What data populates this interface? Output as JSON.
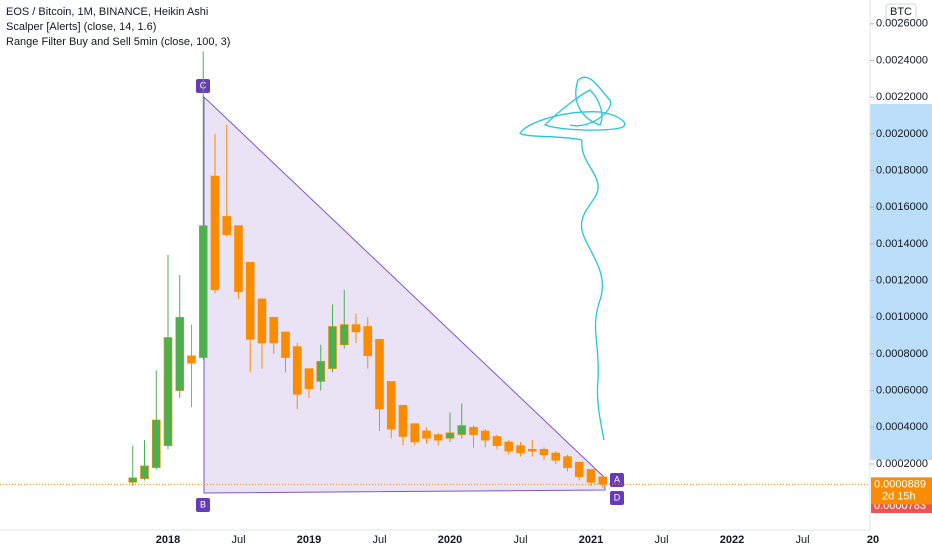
{
  "chart_data": {
    "type": "candlestick",
    "title": "EOS / Bitcoin, 1M, BINANCE, Heikin Ashi",
    "indicators": [
      "Scalper [Alerts] (close, 14, 1.6)",
      "Range Filter Buy and Sell 5min (close, 100, 3)"
    ],
    "currency": "BTC",
    "categories": [
      null,
      null,
      null,
      "2018",
      null,
      null,
      null,
      null,
      null,
      "Jul",
      null,
      null,
      null,
      null,
      null,
      "2019",
      null,
      null,
      null,
      null,
      null,
      "Jul",
      null,
      null,
      null,
      null,
      null,
      "2020",
      null,
      null,
      null,
      null,
      null,
      "Jul",
      null,
      null,
      null,
      null,
      null,
      "2021",
      null,
      null,
      null,
      null,
      null,
      "Jul",
      null,
      null,
      null,
      null,
      null,
      "2022",
      null,
      null,
      null,
      null,
      null,
      "Jul",
      null,
      null,
      null,
      null,
      null,
      "20"
    ],
    "open": [
      0.0001,
      0.00012,
      0.00018,
      0.0003,
      0.0006,
      0.00079,
      0.00078,
      0.00177,
      0.00155,
      0.0015,
      0.0013,
      0.0011,
      0.001,
      0.00092,
      0.00084,
      0.00072,
      0.00065,
      0.00072,
      0.00085,
      0.00096,
      0.00095,
      0.00088,
      0.00065,
      0.00052,
      0.00042,
      0.00038,
      0.00036,
      0.00034,
      0.00036,
      0.0004,
      0.00038,
      0.00035,
      0.00032,
      0.0003,
      0.00028,
      0.00028,
      0.00026,
      0.00024,
      0.00021,
      0.00017,
      0.00013,
      null,
      null,
      null,
      null,
      null,
      null,
      null,
      null,
      null,
      null,
      null,
      null,
      null,
      null,
      null,
      null,
      null,
      null,
      null,
      null,
      null,
      null,
      null
    ],
    "high": [
      0.0003,
      0.00033,
      0.00071,
      0.00134,
      0.00123,
      0.00096,
      0.00245,
      0.002,
      0.00205,
      0.0015,
      0.0013,
      0.0011,
      0.001,
      0.00092,
      0.00086,
      0.00072,
      0.00085,
      0.00107,
      0.00115,
      0.00102,
      0.001,
      0.00088,
      0.00065,
      0.00052,
      0.00042,
      0.0004,
      0.00037,
      0.00048,
      0.00053,
      0.00041,
      0.00039,
      0.00036,
      0.00033,
      0.00032,
      0.00033,
      0.00029,
      0.00027,
      0.00025,
      0.00021,
      0.00017,
      0.00013,
      null,
      null,
      null,
      null,
      null,
      null,
      null,
      null,
      null,
      null,
      null,
      null,
      null,
      null,
      null,
      null,
      null,
      null,
      null,
      null,
      null,
      null,
      null
    ],
    "low": [
      8e-05,
      0.00011,
      0.00017,
      0.00028,
      0.00056,
      0.00051,
      0.00077,
      0.00113,
      0.00144,
      0.0011,
      0.0007,
      0.00072,
      0.0008,
      0.0007,
      0.0005,
      0.00056,
      0.0006,
      0.0007,
      0.00083,
      0.00086,
      0.00072,
      0.00038,
      0.00034,
      0.0003,
      0.0003,
      0.00031,
      0.0003,
      0.00032,
      0.00034,
      0.00029,
      0.00029,
      0.00028,
      0.00025,
      0.00024,
      0.00024,
      0.00022,
      0.0002,
      0.00016,
      0.00011,
      8e-05,
      7e-05,
      null,
      null,
      null,
      null,
      null,
      null,
      null,
      null,
      null,
      null,
      null,
      null,
      null,
      null,
      null,
      null,
      null,
      null,
      null,
      null,
      null,
      null,
      null
    ],
    "close": [
      0.000125,
      0.00019,
      0.00044,
      0.00089,
      0.001,
      0.00075,
      0.0015,
      0.00115,
      0.00145,
      0.00114,
      0.00088,
      0.00086,
      0.00086,
      0.00078,
      0.00058,
      0.00061,
      0.00076,
      0.00095,
      0.00096,
      0.00092,
      0.00079,
      0.0005,
      0.00039,
      0.00035,
      0.00032,
      0.00034,
      0.00033,
      0.00037,
      0.00041,
      0.00036,
      0.00033,
      0.0003,
      0.00027,
      0.00026,
      0.00027,
      0.00025,
      0.00022,
      0.00018,
      0.00013,
      0.0001,
      9e-05,
      null,
      null,
      null,
      null,
      null,
      null,
      null,
      null,
      null,
      null,
      null,
      null,
      null,
      null,
      null,
      null,
      null,
      null,
      null,
      null,
      null,
      null,
      null
    ],
    "up_color": "#4caf50",
    "down_color": "#fb8c00",
    "ylim": [
      -0.00016,
      0.00273
    ],
    "yticks": [
      {
        "value": 0.0002,
        "label": "0.0002000"
      },
      {
        "value": 0.0004,
        "label": "0.0004000"
      },
      {
        "value": 0.0006,
        "label": "0.0006000"
      },
      {
        "value": 0.0008,
        "label": "0.0008000"
      },
      {
        "value": 0.001,
        "label": "0.0010000"
      },
      {
        "value": 0.0012,
        "label": "0.0012000"
      },
      {
        "value": 0.0014,
        "label": "0.0014000"
      },
      {
        "value": 0.0016,
        "label": "0.0016000"
      },
      {
        "value": 0.0018,
        "label": "0.0018000"
      },
      {
        "value": 0.002,
        "label": "0.0020000"
      },
      {
        "value": 0.0022,
        "label": "0.0022000"
      },
      {
        "value": 0.0024,
        "label": "0.0024000"
      },
      {
        "value": 0.0026,
        "label": "0.0026000"
      }
    ],
    "last_price": {
      "value": 8.89e-05,
      "label": "0.0000889"
    },
    "countdown": "2d 15h",
    "range_low_label": "0.0000783",
    "point_labels": [
      "A",
      "B",
      "C",
      "D"
    ],
    "grid": false
  }
}
